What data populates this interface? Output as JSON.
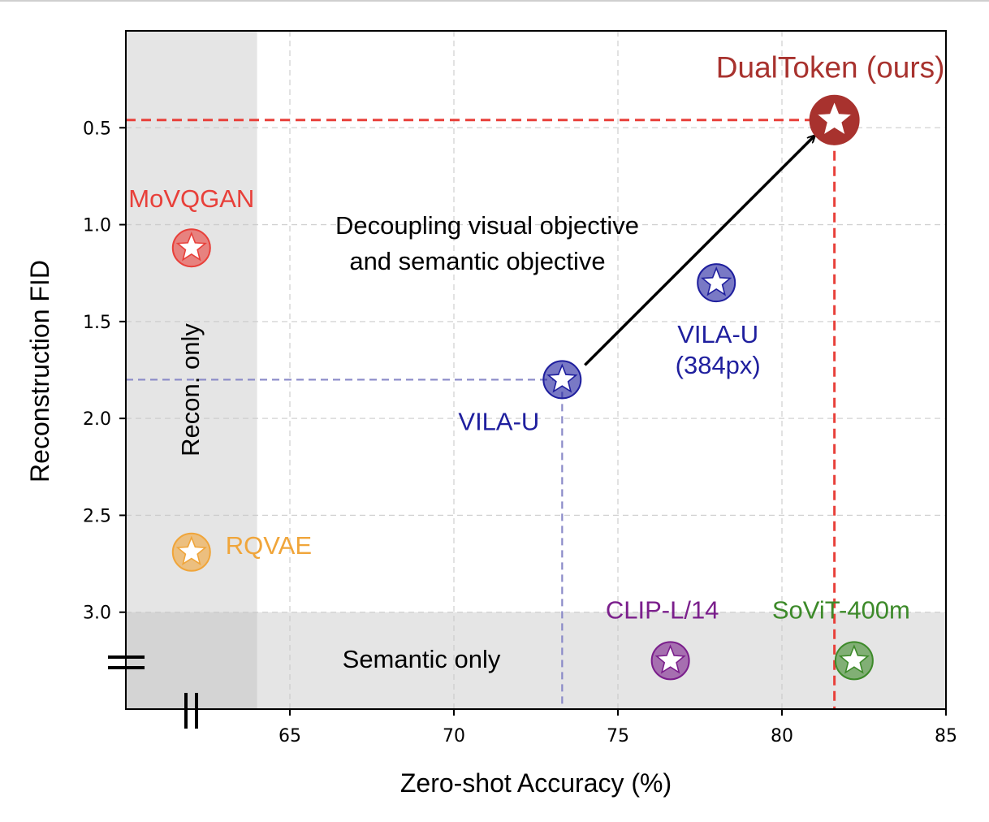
{
  "chart_data": {
    "type": "scatter",
    "xlabel": "Zero-shot Accuracy (%)",
    "ylabel": "Reconstruction FID",
    "xlim": [
      60,
      85
    ],
    "ylim": [
      3.5,
      0.0
    ],
    "y_inverted": true,
    "x_ticks": [
      "65",
      "70",
      "75",
      "80",
      "85"
    ],
    "y_ticks": [
      "0.5",
      "1.0",
      "1.5",
      "2.0",
      "2.5",
      "3.0"
    ],
    "grid": true,
    "axis_break_marks": [
      "=",
      "||"
    ],
    "regions": [
      {
        "label": "Recon. only",
        "x_range": [
          60,
          64
        ]
      },
      {
        "label": "Semantic only",
        "y_range": [
          3.0,
          3.5
        ]
      }
    ],
    "points": [
      {
        "name": "MoVQGAN",
        "x": 62.0,
        "y": 1.12,
        "color": "#e8403a"
      },
      {
        "name": "RQVAE",
        "x": 62.0,
        "y": 2.69,
        "color": "#f0a53a"
      },
      {
        "name": "VILA-U",
        "x": 73.3,
        "y": 1.8,
        "color": "#1f1f9e"
      },
      {
        "name": "VILA-U\n(384px)",
        "x": 78.0,
        "y": 1.3,
        "color": "#1f1f9e"
      },
      {
        "name": "CLIP-L/14",
        "x": 76.6,
        "y": 3.25,
        "color": "#7b1f8c"
      },
      {
        "name": "SoViT-400m",
        "x": 82.2,
        "y": 3.25,
        "color": "#3d8a2a"
      },
      {
        "name": "DualToken (ours)",
        "x": 81.6,
        "y": 0.46,
        "color": "#a8322e"
      }
    ],
    "annotation": {
      "text_line1": "Decoupling visual objective",
      "text_line2": "and semantic objective"
    }
  }
}
